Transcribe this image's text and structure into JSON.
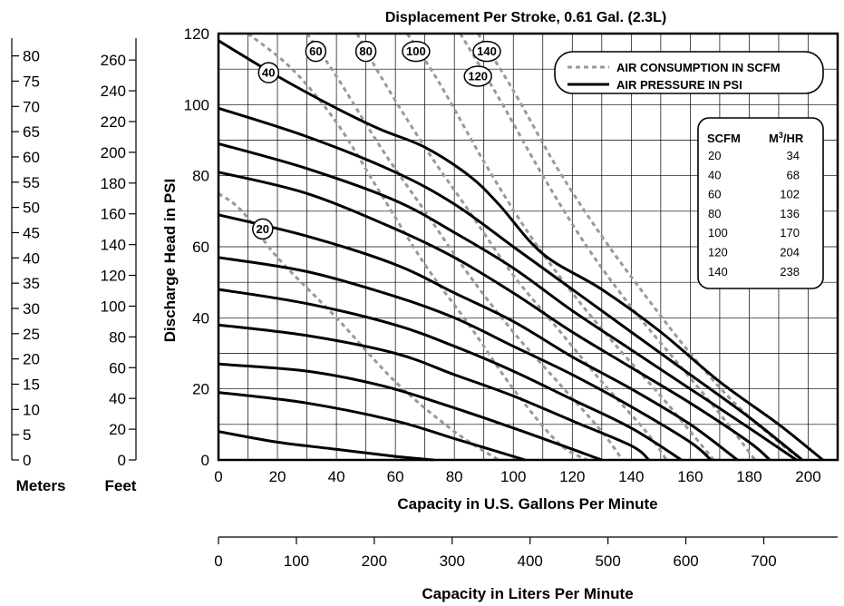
{
  "chart_data": {
    "type": "line",
    "title": "Displacement Per Stroke, 0.61 Gal. (2.3L)",
    "xlabel": "Capacity in U.S. Gallons Per Minute",
    "ylabel": "Discharge Head in PSI",
    "xlim": [
      0,
      210
    ],
    "ylim": [
      0,
      120
    ],
    "x_ticks": [
      "0",
      "20",
      "40",
      "60",
      "80",
      "100",
      "120",
      "140",
      "160",
      "180",
      "200"
    ],
    "y_ticks": [
      "0",
      "20",
      "40",
      "60",
      "80",
      "100",
      "120"
    ],
    "grid": true,
    "legend_position": "top-right",
    "legend": {
      "air_consumption": "AIR CONSUMPTION IN SCFM",
      "air_pressure": "AIR PRESSURE IN PSI"
    },
    "liters_axis": {
      "label": "Capacity in Liters Per Minute",
      "ticks": [
        "0",
        "100",
        "200",
        "300",
        "400",
        "500",
        "600",
        "700"
      ],
      "values": [
        0,
        100,
        200,
        300,
        400,
        500,
        600,
        700
      ],
      "lpm_per_gpm": 3.785
    },
    "feet_axis": {
      "label": "Feet",
      "ticks": [
        "0",
        "20",
        "40",
        "60",
        "80",
        "100",
        "120",
        "140",
        "160",
        "180",
        "200",
        "220",
        "240",
        "260"
      ],
      "values": [
        0,
        20,
        40,
        60,
        80,
        100,
        120,
        140,
        160,
        180,
        200,
        220,
        240,
        260
      ],
      "ft_per_psi": 2.31
    },
    "meters_axis": {
      "label": "Meters",
      "ticks": [
        "0",
        "5",
        "10",
        "15",
        "20",
        "25",
        "30",
        "35",
        "40",
        "45",
        "50",
        "55",
        "60",
        "65",
        "70",
        "75",
        "80"
      ],
      "values": [
        0,
        5,
        10,
        15,
        20,
        25,
        30,
        35,
        40,
        45,
        50,
        55,
        60,
        65,
        70,
        75,
        80
      ],
      "m_per_psi": 0.7035
    },
    "conversion_table": {
      "headers": [
        "SCFM",
        "M3/HR"
      ],
      "rows": [
        [
          "20",
          "34"
        ],
        [
          "40",
          "68"
        ],
        [
          "60",
          "102"
        ],
        [
          "80",
          "136"
        ],
        [
          "100",
          "170"
        ],
        [
          "120",
          "204"
        ],
        [
          "140",
          "238"
        ]
      ]
    },
    "air_pressure_curves": [
      {
        "points": [
          [
            0,
            8
          ],
          [
            20,
            5
          ],
          [
            40,
            3
          ],
          [
            60,
            1
          ],
          [
            73,
            0
          ]
        ]
      },
      {
        "points": [
          [
            0,
            19
          ],
          [
            30,
            16
          ],
          [
            60,
            11
          ],
          [
            80,
            6
          ],
          [
            104,
            0
          ]
        ]
      },
      {
        "points": [
          [
            0,
            27
          ],
          [
            30,
            25
          ],
          [
            55,
            21
          ],
          [
            75,
            16
          ],
          [
            100,
            9
          ],
          [
            130,
            0
          ]
        ]
      },
      {
        "points": [
          [
            0,
            38
          ],
          [
            30,
            35
          ],
          [
            60,
            30
          ],
          [
            80,
            24
          ],
          [
            100,
            18
          ],
          [
            120,
            11
          ],
          [
            140,
            4
          ],
          [
            146,
            0
          ]
        ]
      },
      {
        "points": [
          [
            0,
            48
          ],
          [
            30,
            44
          ],
          [
            60,
            38
          ],
          [
            80,
            32
          ],
          [
            100,
            25
          ],
          [
            120,
            17
          ],
          [
            140,
            9
          ],
          [
            157,
            0
          ]
        ]
      },
      {
        "points": [
          [
            0,
            57
          ],
          [
            30,
            53
          ],
          [
            60,
            46
          ],
          [
            80,
            40
          ],
          [
            100,
            32
          ],
          [
            120,
            24
          ],
          [
            140,
            15
          ],
          [
            160,
            5
          ],
          [
            167,
            0
          ]
        ]
      },
      {
        "points": [
          [
            0,
            69
          ],
          [
            30,
            63
          ],
          [
            60,
            55
          ],
          [
            80,
            47
          ],
          [
            100,
            39
          ],
          [
            120,
            29
          ],
          [
            140,
            20
          ],
          [
            160,
            10
          ],
          [
            176,
            0
          ]
        ]
      },
      {
        "points": [
          [
            0,
            81
          ],
          [
            30,
            75
          ],
          [
            60,
            65
          ],
          [
            80,
            57
          ],
          [
            100,
            47
          ],
          [
            120,
            36
          ],
          [
            140,
            26
          ],
          [
            160,
            16
          ],
          [
            180,
            5
          ],
          [
            187,
            0
          ]
        ]
      },
      {
        "points": [
          [
            0,
            89
          ],
          [
            30,
            82
          ],
          [
            60,
            73
          ],
          [
            80,
            64
          ],
          [
            100,
            54
          ],
          [
            120,
            42
          ],
          [
            140,
            31
          ],
          [
            160,
            20
          ],
          [
            180,
            9
          ],
          [
            196,
            0
          ]
        ]
      },
      {
        "points": [
          [
            0,
            99
          ],
          [
            30,
            91
          ],
          [
            60,
            81
          ],
          [
            80,
            72
          ],
          [
            100,
            60
          ],
          [
            120,
            48
          ],
          [
            140,
            36
          ],
          [
            160,
            24
          ],
          [
            180,
            12
          ],
          [
            198,
            0
          ]
        ]
      },
      {
        "points": [
          [
            0,
            118
          ],
          [
            20,
            108
          ],
          [
            40,
            99
          ],
          [
            55,
            93
          ],
          [
            70,
            88
          ],
          [
            85,
            80
          ],
          [
            95,
            72
          ],
          [
            110,
            58
          ],
          [
            130,
            48
          ],
          [
            150,
            36
          ],
          [
            170,
            22
          ],
          [
            190,
            10
          ],
          [
            205,
            0
          ]
        ]
      }
    ],
    "air_consumption_curves": [
      {
        "scfm": "20",
        "label_at": [
          15,
          65
        ],
        "points": [
          [
            0,
            75
          ],
          [
            8,
            70
          ],
          [
            20,
            57
          ],
          [
            40,
            40
          ],
          [
            60,
            22
          ],
          [
            80,
            8
          ],
          [
            95,
            0
          ]
        ]
      },
      {
        "scfm": "40",
        "label_at": [
          17,
          109
        ],
        "points": [
          [
            10,
            120
          ],
          [
            25,
            110
          ],
          [
            40,
            95
          ],
          [
            55,
            75
          ],
          [
            70,
            55
          ],
          [
            85,
            38
          ],
          [
            100,
            20
          ],
          [
            115,
            5
          ],
          [
            125,
            0
          ]
        ]
      },
      {
        "scfm": "60",
        "label_at": [
          33,
          115
        ],
        "points": [
          [
            30,
            120
          ],
          [
            40,
            108
          ],
          [
            55,
            88
          ],
          [
            70,
            70
          ],
          [
            85,
            52
          ],
          [
            100,
            36
          ],
          [
            115,
            22
          ],
          [
            130,
            8
          ],
          [
            137,
            0
          ]
        ]
      },
      {
        "scfm": "80",
        "label_at": [
          50,
          115
        ],
        "points": [
          [
            47,
            120
          ],
          [
            55,
            108
          ],
          [
            70,
            88
          ],
          [
            85,
            70
          ],
          [
            100,
            52
          ],
          [
            115,
            37
          ],
          [
            130,
            22
          ],
          [
            145,
            8
          ],
          [
            152,
            0
          ]
        ]
      },
      {
        "scfm": "100",
        "label_at": [
          67,
          115
        ],
        "points": [
          [
            64,
            120
          ],
          [
            75,
            106
          ],
          [
            90,
            84
          ],
          [
            105,
            64
          ],
          [
            120,
            47
          ],
          [
            135,
            32
          ],
          [
            150,
            18
          ],
          [
            162,
            6
          ],
          [
            168,
            0
          ]
        ]
      },
      {
        "scfm": "120",
        "label_at": [
          88,
          108
        ],
        "points": [
          [
            82,
            120
          ],
          [
            95,
            102
          ],
          [
            110,
            80
          ],
          [
            125,
            60
          ],
          [
            140,
            43
          ],
          [
            155,
            28
          ],
          [
            170,
            13
          ],
          [
            182,
            0
          ]
        ]
      },
      {
        "scfm": "140",
        "label_at": [
          91,
          115
        ],
        "points": [
          [
            88,
            120
          ],
          [
            100,
            104
          ],
          [
            115,
            82
          ],
          [
            130,
            63
          ],
          [
            145,
            46
          ],
          [
            160,
            30
          ],
          [
            175,
            16
          ],
          [
            190,
            5
          ],
          [
            198,
            0
          ]
        ]
      }
    ]
  }
}
